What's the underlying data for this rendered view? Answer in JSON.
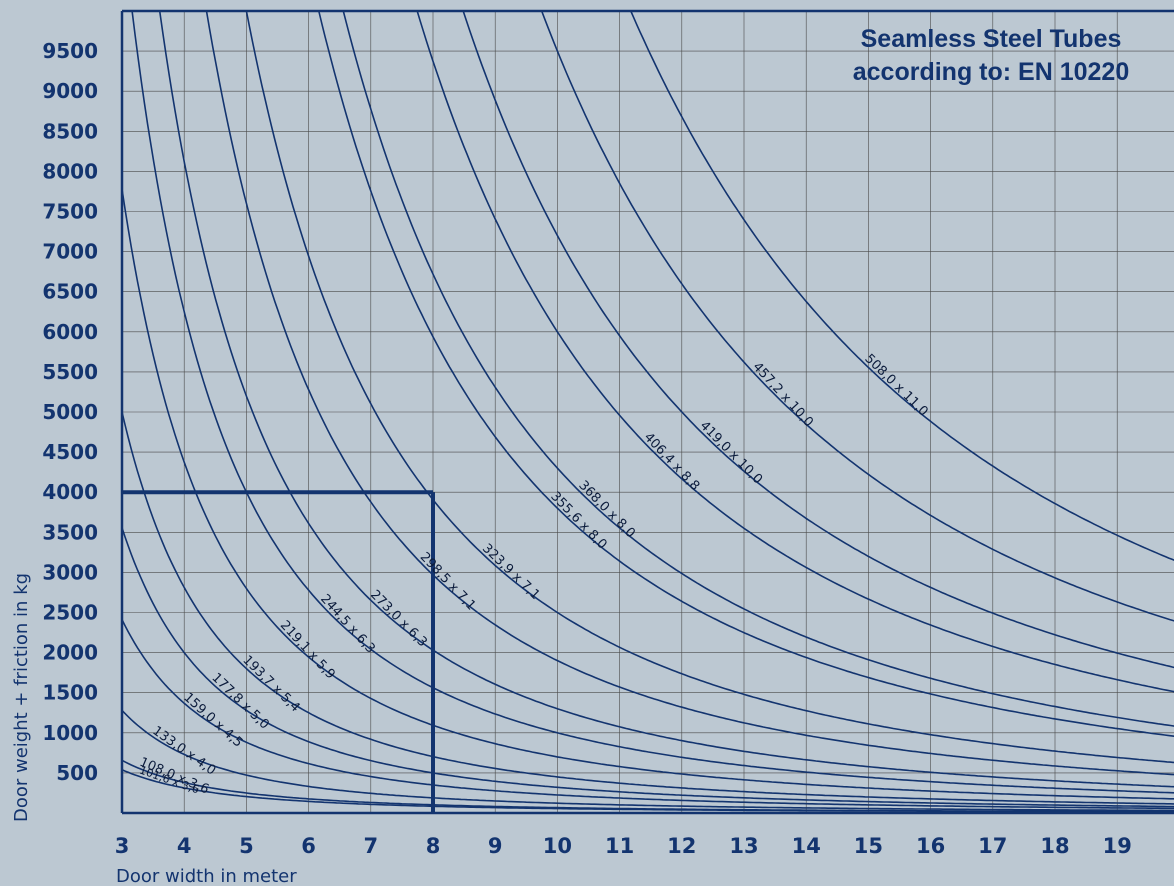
{
  "chart_data": {
    "type": "line",
    "title": "Seamless Steel Tubes",
    "subtitle": "according to: EN 10220",
    "xlabel": "Door width in meter",
    "ylabel": "Door weight + friction in kg",
    "xlim": [
      3,
      20
    ],
    "ylim": [
      0,
      10000
    ],
    "x_ticks": [
      "3",
      "4",
      "5",
      "6",
      "7",
      "8",
      "9",
      "10",
      "11",
      "12",
      "13",
      "14",
      "15",
      "16",
      "17",
      "18",
      "19"
    ],
    "y_ticks": [
      "500",
      "1000",
      "1500",
      "2000",
      "2500",
      "3000",
      "3500",
      "4000",
      "4500",
      "5000",
      "5500",
      "6000",
      "6500",
      "7000",
      "7500",
      "8000",
      "8500",
      "9000",
      "9500"
    ],
    "grid": true,
    "series": [
      {
        "name": "101,6 x 3,6",
        "a": 4350,
        "b": 1.9
      },
      {
        "name": "108,0 x 3,6",
        "a": 5300,
        "b": 1.9
      },
      {
        "name": "133,0 x 4,0",
        "a": 10900,
        "b": 1.95
      },
      {
        "name": "159,0 x 4,5",
        "a": 21000,
        "b": 1.97
      },
      {
        "name": "177,8 x 5,0",
        "a": 32000,
        "b": 2.0
      },
      {
        "name": "193,7 x 5,4",
        "a": 45000,
        "b": 2.0
      },
      {
        "name": "219,1 x 5,9",
        "a": 70000,
        "b": 2.0
      },
      {
        "name": "244,5 x 6,3",
        "a": 100000,
        "b": 2.0
      },
      {
        "name": "273,0 x 6,3",
        "a": 130000,
        "b": 2.0
      },
      {
        "name": "298,5 x 7,1",
        "a": 190000,
        "b": 2.0
      },
      {
        "name": "323,9 x 7,1",
        "a": 250000,
        "b": 2.0
      },
      {
        "name": "355,6 x 8,0",
        "a": 380000,
        "b": 2.0
      },
      {
        "name": "368,0 x 8,0",
        "a": 430000,
        "b": 2.0
      },
      {
        "name": "406,4 x 8,8",
        "a": 600000,
        "b": 2.0
      },
      {
        "name": "419,0 x 10,0",
        "a": 720000,
        "b": 2.0
      },
      {
        "name": "457,2 x 10,0",
        "a": 950000,
        "b": 2.0
      },
      {
        "name": "508,0 x 11,0",
        "a": 1250000,
        "b": 2.0
      }
    ],
    "example_reading": {
      "x": 8,
      "y": 4000
    },
    "colors": {
      "background": "#bcc8d2",
      "curve": "#13346f",
      "grid": "#4a4a4a",
      "text": "#13346f"
    }
  }
}
